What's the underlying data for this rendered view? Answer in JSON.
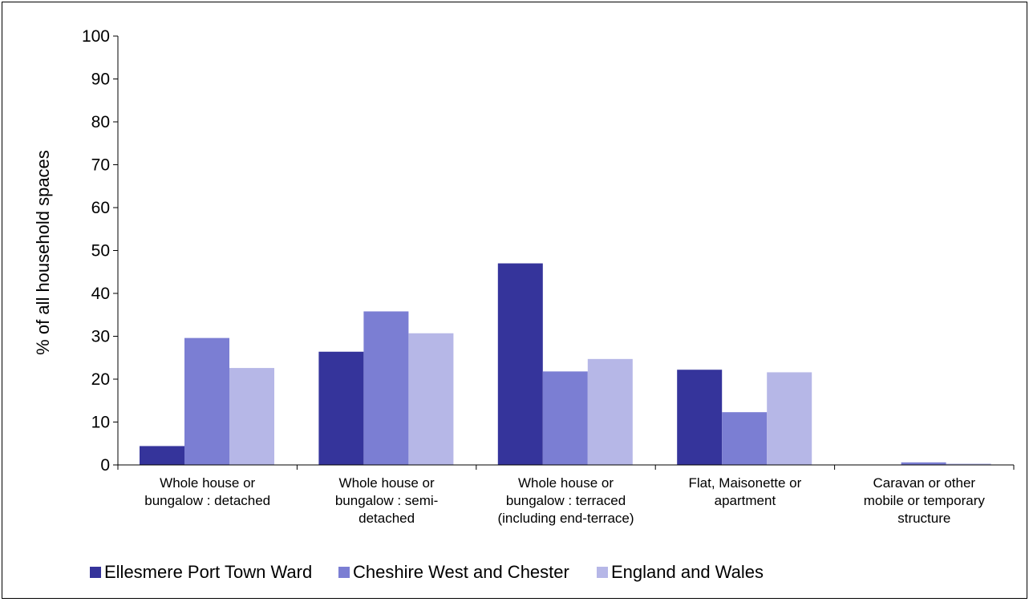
{
  "chart_data": {
    "type": "bar",
    "title": "",
    "xlabel": "",
    "ylabel": "% of all household spaces",
    "ylim": [
      0,
      100
    ],
    "yticks": [
      0,
      10,
      20,
      30,
      40,
      50,
      60,
      70,
      80,
      90,
      100
    ],
    "grid": false,
    "legend_position": "bottom",
    "categories": [
      [
        "Whole house or",
        "bungalow : detached"
      ],
      [
        "Whole house or",
        "bungalow : semi-",
        "detached"
      ],
      [
        "Whole house or",
        "bungalow : terraced",
        "(including end-terrace)"
      ],
      [
        "Flat, Maisonette or",
        "apartment"
      ],
      [
        "Caravan or other",
        "mobile or temporary",
        "structure"
      ]
    ],
    "series": [
      {
        "name": "Ellesmere Port Town Ward",
        "color": "#35349b",
        "values": [
          4.4,
          26.4,
          47.0,
          22.2,
          0.0
        ]
      },
      {
        "name": "Cheshire West and Chester",
        "color": "#7b7ed3",
        "values": [
          29.6,
          35.8,
          21.8,
          12.3,
          0.6
        ]
      },
      {
        "name": "England and Wales",
        "color": "#b6b7e7",
        "values": [
          22.6,
          30.7,
          24.7,
          21.6,
          0.3
        ]
      }
    ]
  }
}
